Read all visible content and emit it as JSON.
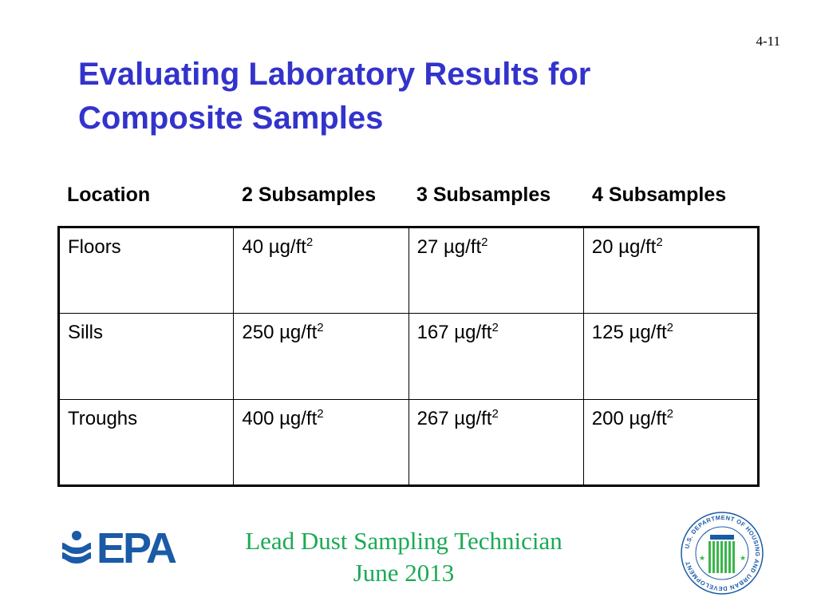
{
  "slide": {
    "page_number": "4-11",
    "title_line1": "Evaluating Laboratory Results for",
    "title_line2": "Composite Samples"
  },
  "table": {
    "headers": [
      "Location",
      "2 Subsamples",
      "3 Subsamples",
      "4 Subsamples"
    ],
    "rows": [
      {
        "location": "Floors",
        "values": [
          "40 µg/ft",
          "27 µg/ft",
          "20 µg/ft"
        ]
      },
      {
        "location": "Sills",
        "values": [
          "250 µg/ft",
          "167 µg/ft",
          "125 µg/ft"
        ]
      },
      {
        "location": "Troughs",
        "values": [
          "400 µg/ft",
          "267 µg/ft",
          "200 µg/ft"
        ]
      }
    ],
    "unit_exponent": "2"
  },
  "footer": {
    "line1": "Lead Dust Sampling Technician",
    "line2": "June 2013"
  },
  "logos": {
    "epa_text": "EPA",
    "hud_seal_text": "U.S. DEPARTMENT OF HOUSING AND URBAN DEVELOPMENT",
    "epa_color": "#1a5aa6",
    "hud_color": "#1a5aa6",
    "hud_green": "#3bb54a"
  },
  "colors": {
    "title": "#3333cc",
    "footer": "#1aaa55"
  }
}
